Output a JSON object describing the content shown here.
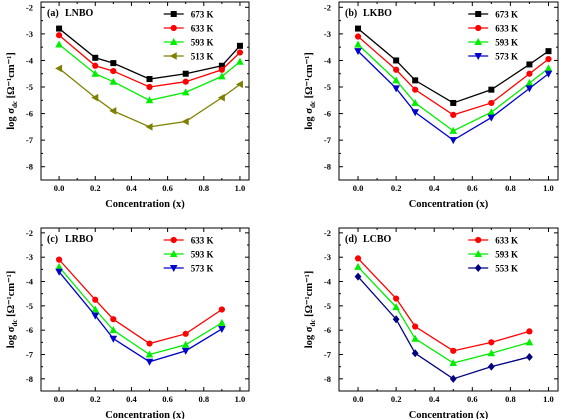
{
  "chart_data": [
    {
      "type": "line",
      "panel_label": "(a)",
      "title": "LNBO",
      "xlabel": "Concentration (x)",
      "ylabel_main": "log σ",
      "ylabel_sub": "dc",
      "ylabel_unit": "[Ω⁻¹cm⁻¹]",
      "xlim": [
        -0.1,
        1.05
      ],
      "ylim": [
        -8.5,
        -1.8
      ],
      "xticks": [
        "0.0",
        "0.2",
        "0.4",
        "0.6",
        "0.8",
        "1.0"
      ],
      "yticks": [
        "-2",
        "-3",
        "-4",
        "-5",
        "-6",
        "-7",
        "-8"
      ],
      "legend_position": "top-right",
      "series": [
        {
          "name": "673 K",
          "color": "#000000",
          "marker": "square",
          "x": [
            0.0,
            0.2,
            0.3,
            0.5,
            0.7,
            0.9,
            1.0
          ],
          "y": [
            -2.8,
            -3.9,
            -4.1,
            -4.7,
            -4.5,
            -4.2,
            -3.45
          ]
        },
        {
          "name": "633 K",
          "color": "#ff0000",
          "marker": "circle",
          "x": [
            0.0,
            0.2,
            0.3,
            0.5,
            0.7,
            0.9,
            1.0
          ],
          "y": [
            -3.05,
            -4.2,
            -4.4,
            -5.0,
            -4.8,
            -4.35,
            -3.7
          ]
        },
        {
          "name": "593 K",
          "color": "#00ee00",
          "marker": "triangle-up",
          "x": [
            0.0,
            0.2,
            0.3,
            0.5,
            0.7,
            0.9,
            1.0
          ],
          "y": [
            -3.4,
            -4.5,
            -4.8,
            -5.5,
            -5.2,
            -4.6,
            -4.05
          ]
        },
        {
          "name": "513 K",
          "color": "#808000",
          "marker": "triangle-left",
          "x": [
            0.0,
            0.2,
            0.3,
            0.5,
            0.7,
            0.9,
            1.0
          ],
          "y": [
            -4.3,
            -5.4,
            -5.9,
            -6.5,
            -6.3,
            -5.4,
            -4.9
          ]
        }
      ]
    },
    {
      "type": "line",
      "panel_label": "(b)",
      "title": "LKBO",
      "xlabel": "Concentration (x)",
      "ylabel_main": "log σ",
      "ylabel_sub": "dc",
      "ylabel_unit": "[Ω⁻¹cm⁻¹]",
      "xlim": [
        -0.1,
        1.05
      ],
      "ylim": [
        -8.5,
        -1.8
      ],
      "xticks": [
        "0.0",
        "0.2",
        "0.4",
        "0.6",
        "0.8",
        "1.0"
      ],
      "yticks": [
        "-2",
        "-3",
        "-4",
        "-5",
        "-6",
        "-7",
        "-8"
      ],
      "legend_position": "top-right",
      "series": [
        {
          "name": "673 K",
          "color": "#000000",
          "marker": "square",
          "x": [
            0.0,
            0.2,
            0.3,
            0.5,
            0.7,
            0.9,
            1.0
          ],
          "y": [
            -2.8,
            -4.0,
            -4.75,
            -5.6,
            -5.1,
            -4.15,
            -3.65
          ]
        },
        {
          "name": "633 K",
          "color": "#ff0000",
          "marker": "circle",
          "x": [
            0.0,
            0.2,
            0.3,
            0.5,
            0.7,
            0.9,
            1.0
          ],
          "y": [
            -3.1,
            -4.35,
            -5.1,
            -6.05,
            -5.6,
            -4.5,
            -3.95
          ]
        },
        {
          "name": "593 K",
          "color": "#00ee00",
          "marker": "triangle-up",
          "x": [
            0.0,
            0.2,
            0.3,
            0.5,
            0.7,
            0.9,
            1.0
          ],
          "y": [
            -3.4,
            -4.75,
            -5.6,
            -6.65,
            -5.95,
            -4.85,
            -4.3
          ]
        },
        {
          "name": "573 K",
          "color": "#0000cc",
          "marker": "triangle-down",
          "x": [
            0.0,
            0.2,
            0.3,
            0.5,
            0.7,
            0.9,
            1.0
          ],
          "y": [
            -3.65,
            -5.05,
            -5.95,
            -7.0,
            -6.15,
            -5.05,
            -4.5
          ]
        }
      ]
    },
    {
      "type": "line",
      "panel_label": "(c)",
      "title": "LRBO",
      "xlabel": "Concentration (x)",
      "ylabel_main": "log σ",
      "ylabel_sub": "dc",
      "ylabel_unit": "[Ω⁻¹cm⁻¹]",
      "xlim": [
        -0.1,
        1.05
      ],
      "ylim": [
        -8.5,
        -1.8
      ],
      "xticks": [
        "0.0",
        "0.2",
        "0.4",
        "0.6",
        "0.8",
        "1.0"
      ],
      "yticks": [
        "-2",
        "-3",
        "-4",
        "-5",
        "-6",
        "-7",
        "-8"
      ],
      "legend_position": "top-right",
      "series": [
        {
          "name": "633 K",
          "color": "#ff0000",
          "marker": "circle",
          "x": [
            0.0,
            0.2,
            0.3,
            0.5,
            0.7,
            0.9
          ],
          "y": [
            -3.1,
            -4.75,
            -5.55,
            -6.55,
            -6.15,
            -5.15
          ]
        },
        {
          "name": "593 K",
          "color": "#00ee00",
          "marker": "triangle-up",
          "x": [
            0.0,
            0.2,
            0.3,
            0.5,
            0.7,
            0.9
          ],
          "y": [
            -3.4,
            -5.15,
            -6.0,
            -7.0,
            -6.6,
            -5.7
          ]
        },
        {
          "name": "573 K",
          "color": "#0000cc",
          "marker": "triangle-down",
          "x": [
            0.0,
            0.2,
            0.3,
            0.5,
            0.7,
            0.9
          ],
          "y": [
            -3.6,
            -5.4,
            -6.35,
            -7.3,
            -6.85,
            -5.95
          ]
        }
      ]
    },
    {
      "type": "line",
      "panel_label": "(d)",
      "title": "LCBO",
      "xlabel": "Concentration (x)",
      "ylabel_main": "log σ",
      "ylabel_sub": "dc",
      "ylabel_unit": "[Ω⁻¹cm⁻¹]",
      "xlim": [
        -0.1,
        1.05
      ],
      "ylim": [
        -8.5,
        -1.8
      ],
      "xticks": [
        "0.0",
        "0.2",
        "0.4",
        "0.6",
        "0.8",
        "1.0"
      ],
      "yticks": [
        "-2",
        "-3",
        "-4",
        "-5",
        "-6",
        "-7",
        "-8"
      ],
      "legend_position": "top-right",
      "series": [
        {
          "name": "633 K",
          "color": "#ff0000",
          "marker": "circle",
          "x": [
            0.0,
            0.2,
            0.3,
            0.5,
            0.7,
            0.9
          ],
          "y": [
            -3.05,
            -4.7,
            -5.85,
            -6.85,
            -6.5,
            -6.05
          ]
        },
        {
          "name": "593 K",
          "color": "#00ee00",
          "marker": "triangle-up",
          "x": [
            0.0,
            0.2,
            0.3,
            0.5,
            0.7,
            0.9
          ],
          "y": [
            -3.4,
            -5.05,
            -6.35,
            -7.35,
            -6.95,
            -6.5
          ]
        },
        {
          "name": "553 K",
          "color": "#000080",
          "marker": "diamond",
          "x": [
            0.0,
            0.2,
            0.3,
            0.5,
            0.7,
            0.9
          ],
          "y": [
            -3.8,
            -5.55,
            -6.95,
            -8.0,
            -7.5,
            -7.1
          ]
        }
      ]
    }
  ]
}
